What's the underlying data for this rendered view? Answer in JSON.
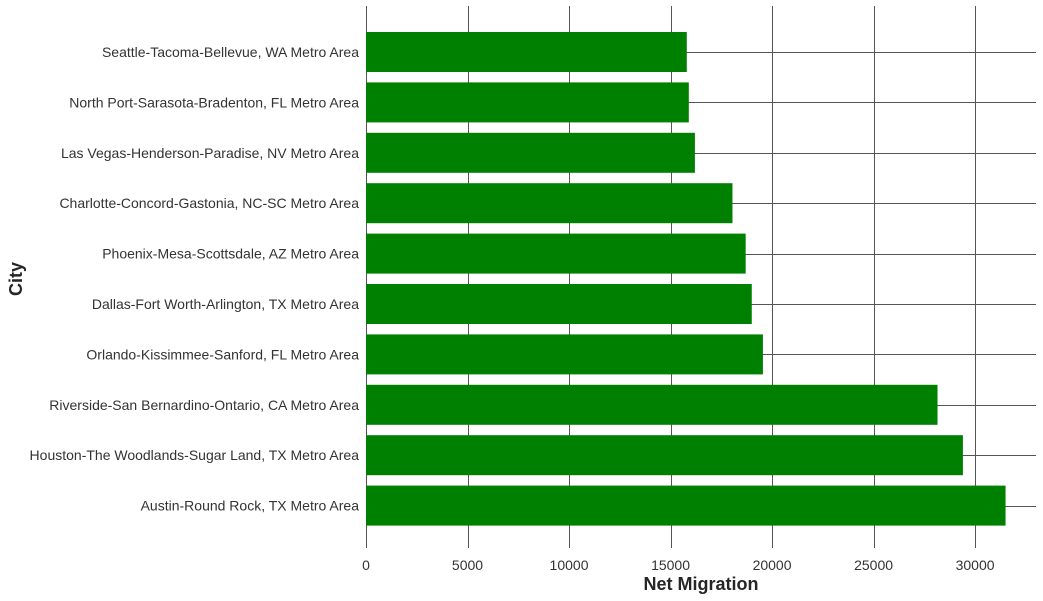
{
  "chart_data": {
    "type": "bar",
    "orientation": "horizontal",
    "categories": [
      "Seattle-Tacoma-Bellevue, WA Metro Area",
      "North Port-Sarasota-Bradenton, FL Metro Area",
      "Las Vegas-Henderson-Paradise, NV Metro Area",
      "Charlotte-Concord-Gastonia, NC-SC Metro Area",
      "Phoenix-Mesa-Scottsdale, AZ Metro Area",
      "Dallas-Fort Worth-Arlington, TX Metro Area",
      "Orlando-Kissimmee-Sanford, FL Metro Area",
      "Riverside-San Bernardino-Ontario, CA Metro Area",
      "Houston-The Woodlands-Sugar Land, TX Metro Area",
      "Austin-Round Rock, TX Metro Area"
    ],
    "values": [
      15800,
      15900,
      16200,
      18050,
      18700,
      19000,
      19550,
      28150,
      29400,
      31500
    ],
    "xlabel": "Net Migration",
    "ylabel": "City",
    "xlim": [
      0,
      33000
    ],
    "xticks": [
      0,
      5000,
      10000,
      15000,
      20000,
      25000,
      30000
    ],
    "grid": true,
    "bar_color": "#008000",
    "grid_color": "#555555"
  }
}
